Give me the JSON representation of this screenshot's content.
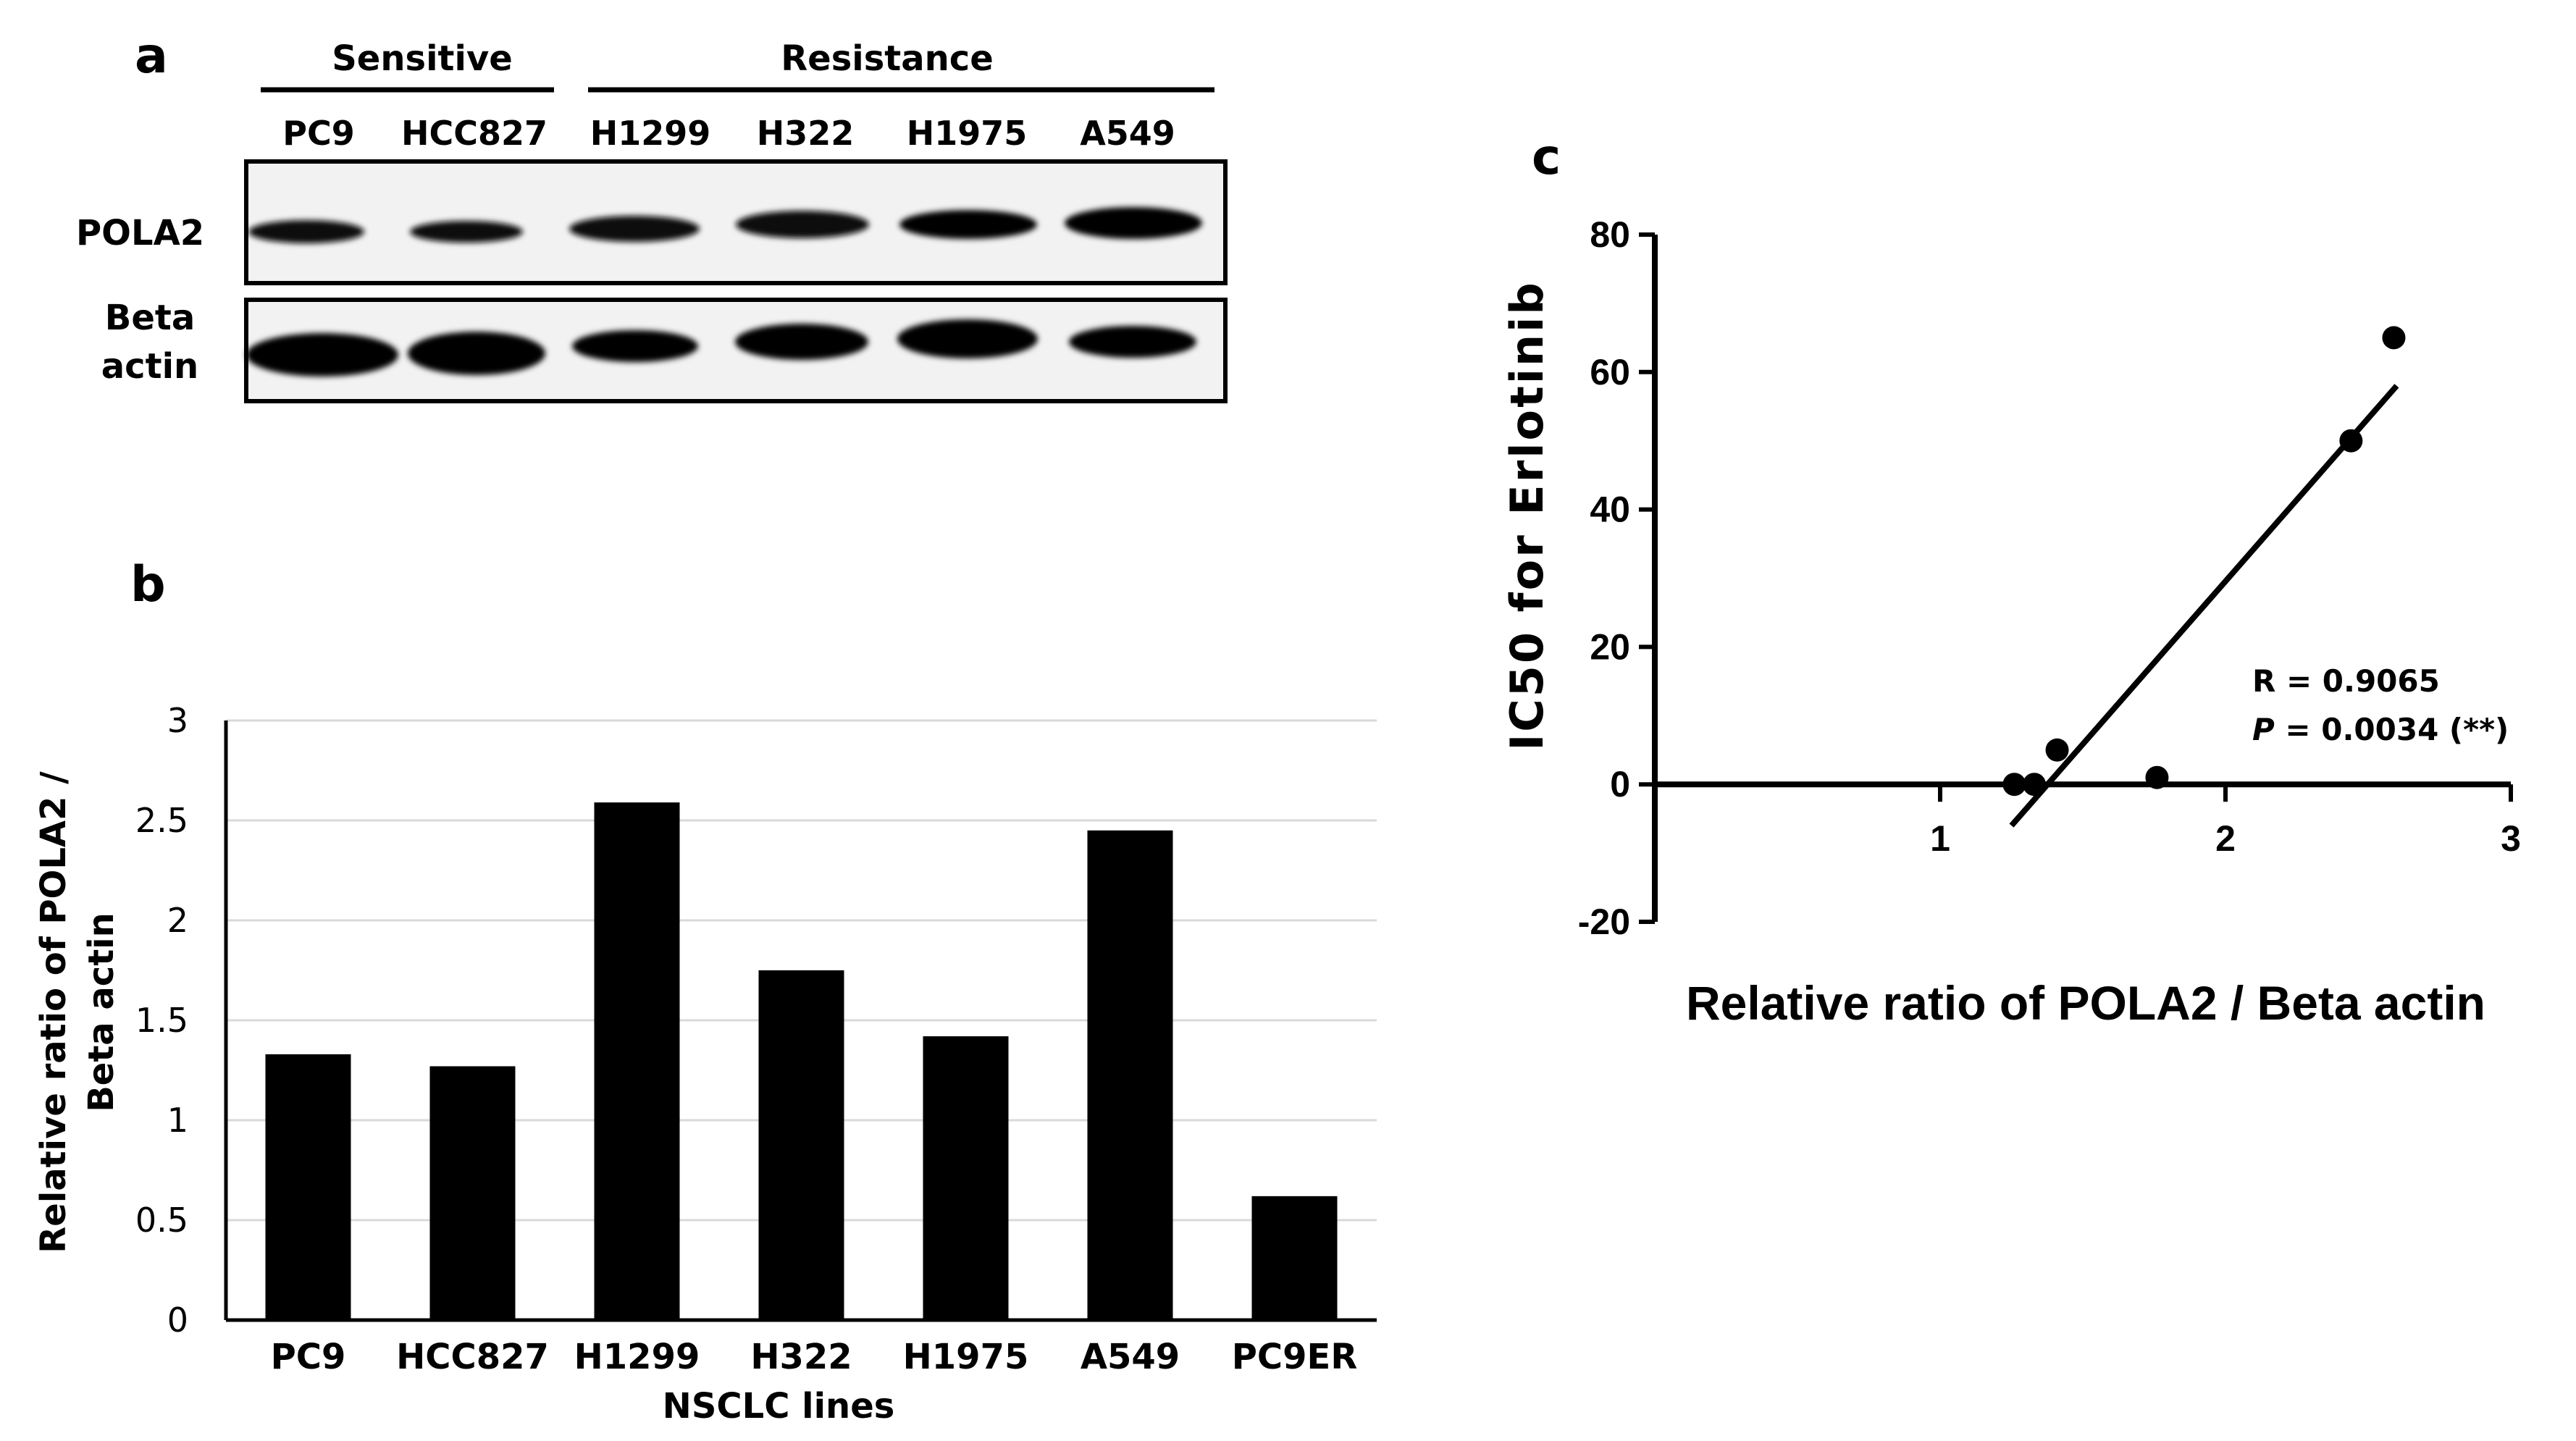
{
  "panel_a": {
    "label": "a",
    "group_sensitive": "Sensitive",
    "group_resistance": "Resistance",
    "lanes": [
      "PC9",
      "HCC827",
      "H1299",
      "H322",
      "H1975",
      "A549"
    ],
    "row_pola2": "POLA2",
    "row_actin_line1": "Beta",
    "row_actin_line2": "actin"
  },
  "panel_b": {
    "label": "b"
  },
  "panel_c": {
    "label": "c"
  },
  "chart_data": [
    {
      "type": "bar",
      "title": "",
      "categories": [
        "PC9",
        "HCC827",
        "H1299",
        "H322",
        "H1975",
        "A549",
        "PC9ER"
      ],
      "values": [
        1.33,
        1.27,
        2.59,
        1.75,
        1.42,
        2.45,
        0.62
      ],
      "xlabel": "NSCLC lines",
      "ylabel_line1": "Relative ratio of POLA2 /",
      "ylabel_line2": "Beta actin",
      "ylim": [
        0,
        3
      ],
      "yticks": [
        0,
        0.5,
        1,
        1.5,
        2,
        2.5,
        3
      ],
      "ytick_labels": [
        "0",
        "0.5",
        "1",
        "1.5",
        "2",
        "2.5",
        "3"
      ],
      "grid": true,
      "color": "#000000"
    },
    {
      "type": "scatter",
      "title": "",
      "x": [
        1.26,
        1.33,
        1.41,
        1.76,
        2.44,
        2.59
      ],
      "y": [
        0,
        0,
        5,
        1,
        50,
        65
      ],
      "fit_line": {
        "x": [
          1.25,
          2.6
        ],
        "y": [
          -6,
          58
        ]
      },
      "xlabel": "Relative ratio of POLA2 / Beta actin",
      "ylabel": "IC50 for Erlotinib",
      "xlim": [
        0,
        3
      ],
      "ylim": [
        -20,
        80
      ],
      "xticks": [
        1,
        2,
        3
      ],
      "xtick_labels": [
        "1",
        "2",
        "3"
      ],
      "yticks": [
        -20,
        0,
        20,
        40,
        60,
        80
      ],
      "ytick_labels": [
        "-20",
        "0",
        "20",
        "40",
        "60",
        "80"
      ],
      "annotation_r": "R = 0.9065",
      "annotation_p_symbol": "P",
      "annotation_p_rest": " = 0.0034 (**)",
      "grid": false
    }
  ]
}
